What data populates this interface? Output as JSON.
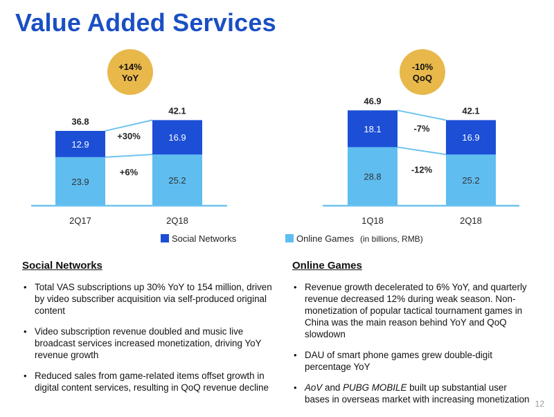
{
  "page": {
    "title": "Value Added Services",
    "page_number": "12"
  },
  "colors": {
    "title": "#1a4fc4",
    "social": "#1c4fd6",
    "online": "#5fbdf0",
    "badge": "#e8b84b",
    "axis": "#6fc2ee"
  },
  "legend": {
    "social": "Social Networks",
    "online": "Online Games",
    "unit": "(in billions, RMB)"
  },
  "chart_data": [
    {
      "type": "bar",
      "stacked": true,
      "categories": [
        "2Q17",
        "2Q18"
      ],
      "series": [
        {
          "name": "Online Games",
          "values": [
            23.9,
            25.2
          ]
        },
        {
          "name": "Social Networks",
          "values": [
            12.9,
            16.9
          ]
        }
      ],
      "totals": [
        36.8,
        42.1
      ],
      "value_labels": {
        "online": [
          "23.9",
          "25.2"
        ],
        "social": [
          "12.9",
          "16.9"
        ],
        "totals": [
          "36.8",
          "42.1"
        ]
      },
      "change_labels": {
        "social": "+30%",
        "online": "+6%"
      },
      "badge": {
        "line1": "+14%",
        "line2": "YoY"
      },
      "ylim": [
        0,
        47
      ]
    },
    {
      "type": "bar",
      "stacked": true,
      "categories": [
        "1Q18",
        "2Q18"
      ],
      "series": [
        {
          "name": "Online Games",
          "values": [
            28.8,
            25.2
          ]
        },
        {
          "name": "Social Networks",
          "values": [
            18.1,
            16.9
          ]
        }
      ],
      "totals": [
        46.9,
        42.1
      ],
      "value_labels": {
        "online": [
          "28.8",
          "25.2"
        ],
        "social": [
          "18.1",
          "16.9"
        ],
        "totals": [
          "46.9",
          "42.1"
        ]
      },
      "change_labels": {
        "social": "-7%",
        "online": "-12%"
      },
      "badge": {
        "line1": "-10%",
        "line2": "QoQ"
      },
      "ylim": [
        0,
        47
      ]
    }
  ],
  "sections": {
    "social": {
      "heading": "Social Networks",
      "bullets": [
        "Total VAS subscriptions up 30% YoY to 154 million, driven by video subscriber acquisition via self-produced original content",
        "Video subscription revenue doubled and music live broadcast services increased monetization, driving YoY revenue growth",
        "Reduced sales from game-related items offset growth in digital content services, resulting in QoQ revenue decline"
      ]
    },
    "online": {
      "heading": "Online Games",
      "bullets": [
        "Revenue growth decelerated to 6% YoY, and quarterly revenue decreased 12% during weak season. Non-monetization of popular tactical tournament games in China was the main reason behind YoY and QoQ slowdown",
        "DAU of smart phone games grew double-digit percentage YoY"
      ],
      "bullet3": {
        "em1": "AoV",
        "mid": " and ",
        "em2": "PUBG MOBILE",
        "rest": " built up substantial user bases in overseas market with increasing monetization"
      }
    }
  }
}
